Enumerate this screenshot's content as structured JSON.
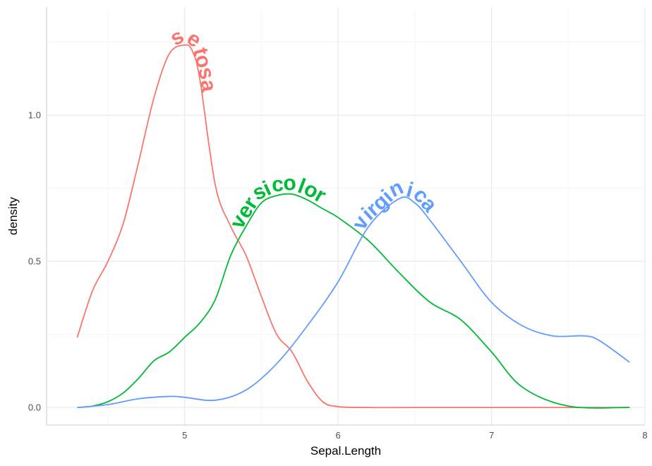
{
  "chart_data": {
    "type": "line",
    "xlabel": "Sepal.Length",
    "ylabel": "density",
    "xlim": [
      4.1,
      8.0
    ],
    "ylim": [
      -0.06,
      1.37
    ],
    "x_ticks": [
      5,
      6,
      7,
      8
    ],
    "x_tick_labels": [
      "5",
      "6",
      "7",
      "8"
    ],
    "y_ticks": [
      0.0,
      0.5,
      1.0
    ],
    "y_tick_labels": [
      "0.0",
      "0.5",
      "1.0"
    ],
    "grid": true,
    "legend": "none (labels placed directly on curves)",
    "series": [
      {
        "name": "setosa",
        "color": "#F8766D",
        "x": [
          4.3,
          4.4,
          4.5,
          4.6,
          4.7,
          4.8,
          4.9,
          5.0,
          5.05,
          5.1,
          5.2,
          5.3,
          5.4,
          5.5,
          5.6,
          5.7,
          5.8,
          5.9,
          6.0,
          6.2,
          6.5,
          7.0,
          7.5,
          7.9
        ],
        "y": [
          0.24,
          0.4,
          0.5,
          0.63,
          0.84,
          1.06,
          1.21,
          1.24,
          1.22,
          1.12,
          0.76,
          0.62,
          0.52,
          0.38,
          0.25,
          0.19,
          0.09,
          0.02,
          0.003,
          0.0,
          0.0,
          0.0,
          0.0,
          0.0
        ]
      },
      {
        "name": "versicolor",
        "color": "#00BA38",
        "x": [
          4.3,
          4.4,
          4.5,
          4.6,
          4.7,
          4.8,
          4.9,
          5.0,
          5.1,
          5.2,
          5.3,
          5.4,
          5.5,
          5.6,
          5.7,
          5.8,
          5.9,
          6.0,
          6.2,
          6.4,
          6.6,
          6.8,
          7.0,
          7.2,
          7.5,
          7.9
        ],
        "y": [
          0.0,
          0.005,
          0.02,
          0.05,
          0.1,
          0.16,
          0.19,
          0.24,
          0.29,
          0.37,
          0.52,
          0.62,
          0.7,
          0.725,
          0.73,
          0.71,
          0.68,
          0.65,
          0.57,
          0.46,
          0.36,
          0.3,
          0.19,
          0.07,
          0.005,
          0.0
        ]
      },
      {
        "name": "virginica",
        "color": "#619CFF",
        "x": [
          4.3,
          4.5,
          4.7,
          4.9,
          5.0,
          5.2,
          5.4,
          5.6,
          5.8,
          6.0,
          6.2,
          6.4,
          6.5,
          6.6,
          6.8,
          7.0,
          7.2,
          7.4,
          7.6,
          7.7,
          7.9
        ],
        "y": [
          0.0,
          0.01,
          0.03,
          0.038,
          0.035,
          0.025,
          0.06,
          0.15,
          0.28,
          0.43,
          0.62,
          0.715,
          0.7,
          0.64,
          0.5,
          0.36,
          0.28,
          0.245,
          0.245,
          0.23,
          0.155
        ]
      }
    ]
  }
}
